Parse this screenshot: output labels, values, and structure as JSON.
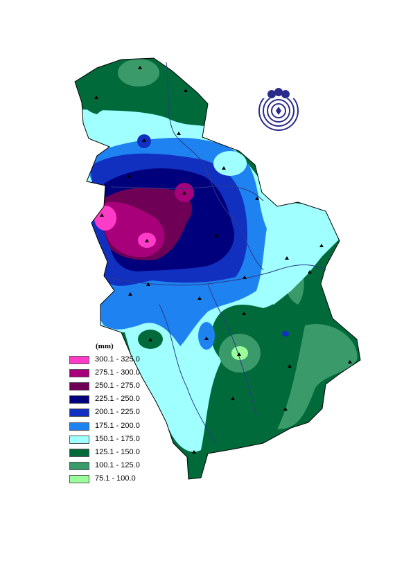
{
  "legend": {
    "unit": "(mm)",
    "classes": [
      {
        "range": "300.1 - 325.0",
        "color": "#ff3cc8"
      },
      {
        "range": "275.1 - 300.0",
        "color": "#a8007a"
      },
      {
        "range": "250.1 - 275.0",
        "color": "#6e0055"
      },
      {
        "range": "225.1 - 250.0",
        "color": "#00007d"
      },
      {
        "range": "200.1 - 225.0",
        "color": "#1230c0"
      },
      {
        "range": "175.1 - 200.0",
        "color": "#1e82f0"
      },
      {
        "range": "150.1 - 175.0",
        "color": "#a0ffff"
      },
      {
        "range": "125.1 - 150.0",
        "color": "#006a3a"
      },
      {
        "range": "100.1 - 125.0",
        "color": "#3a9a6a"
      },
      {
        "range": "75.1 - 100.0",
        "color": "#9aff9a"
      }
    ]
  },
  "logo": {
    "name": "hydrometeorological-service-logo"
  }
}
